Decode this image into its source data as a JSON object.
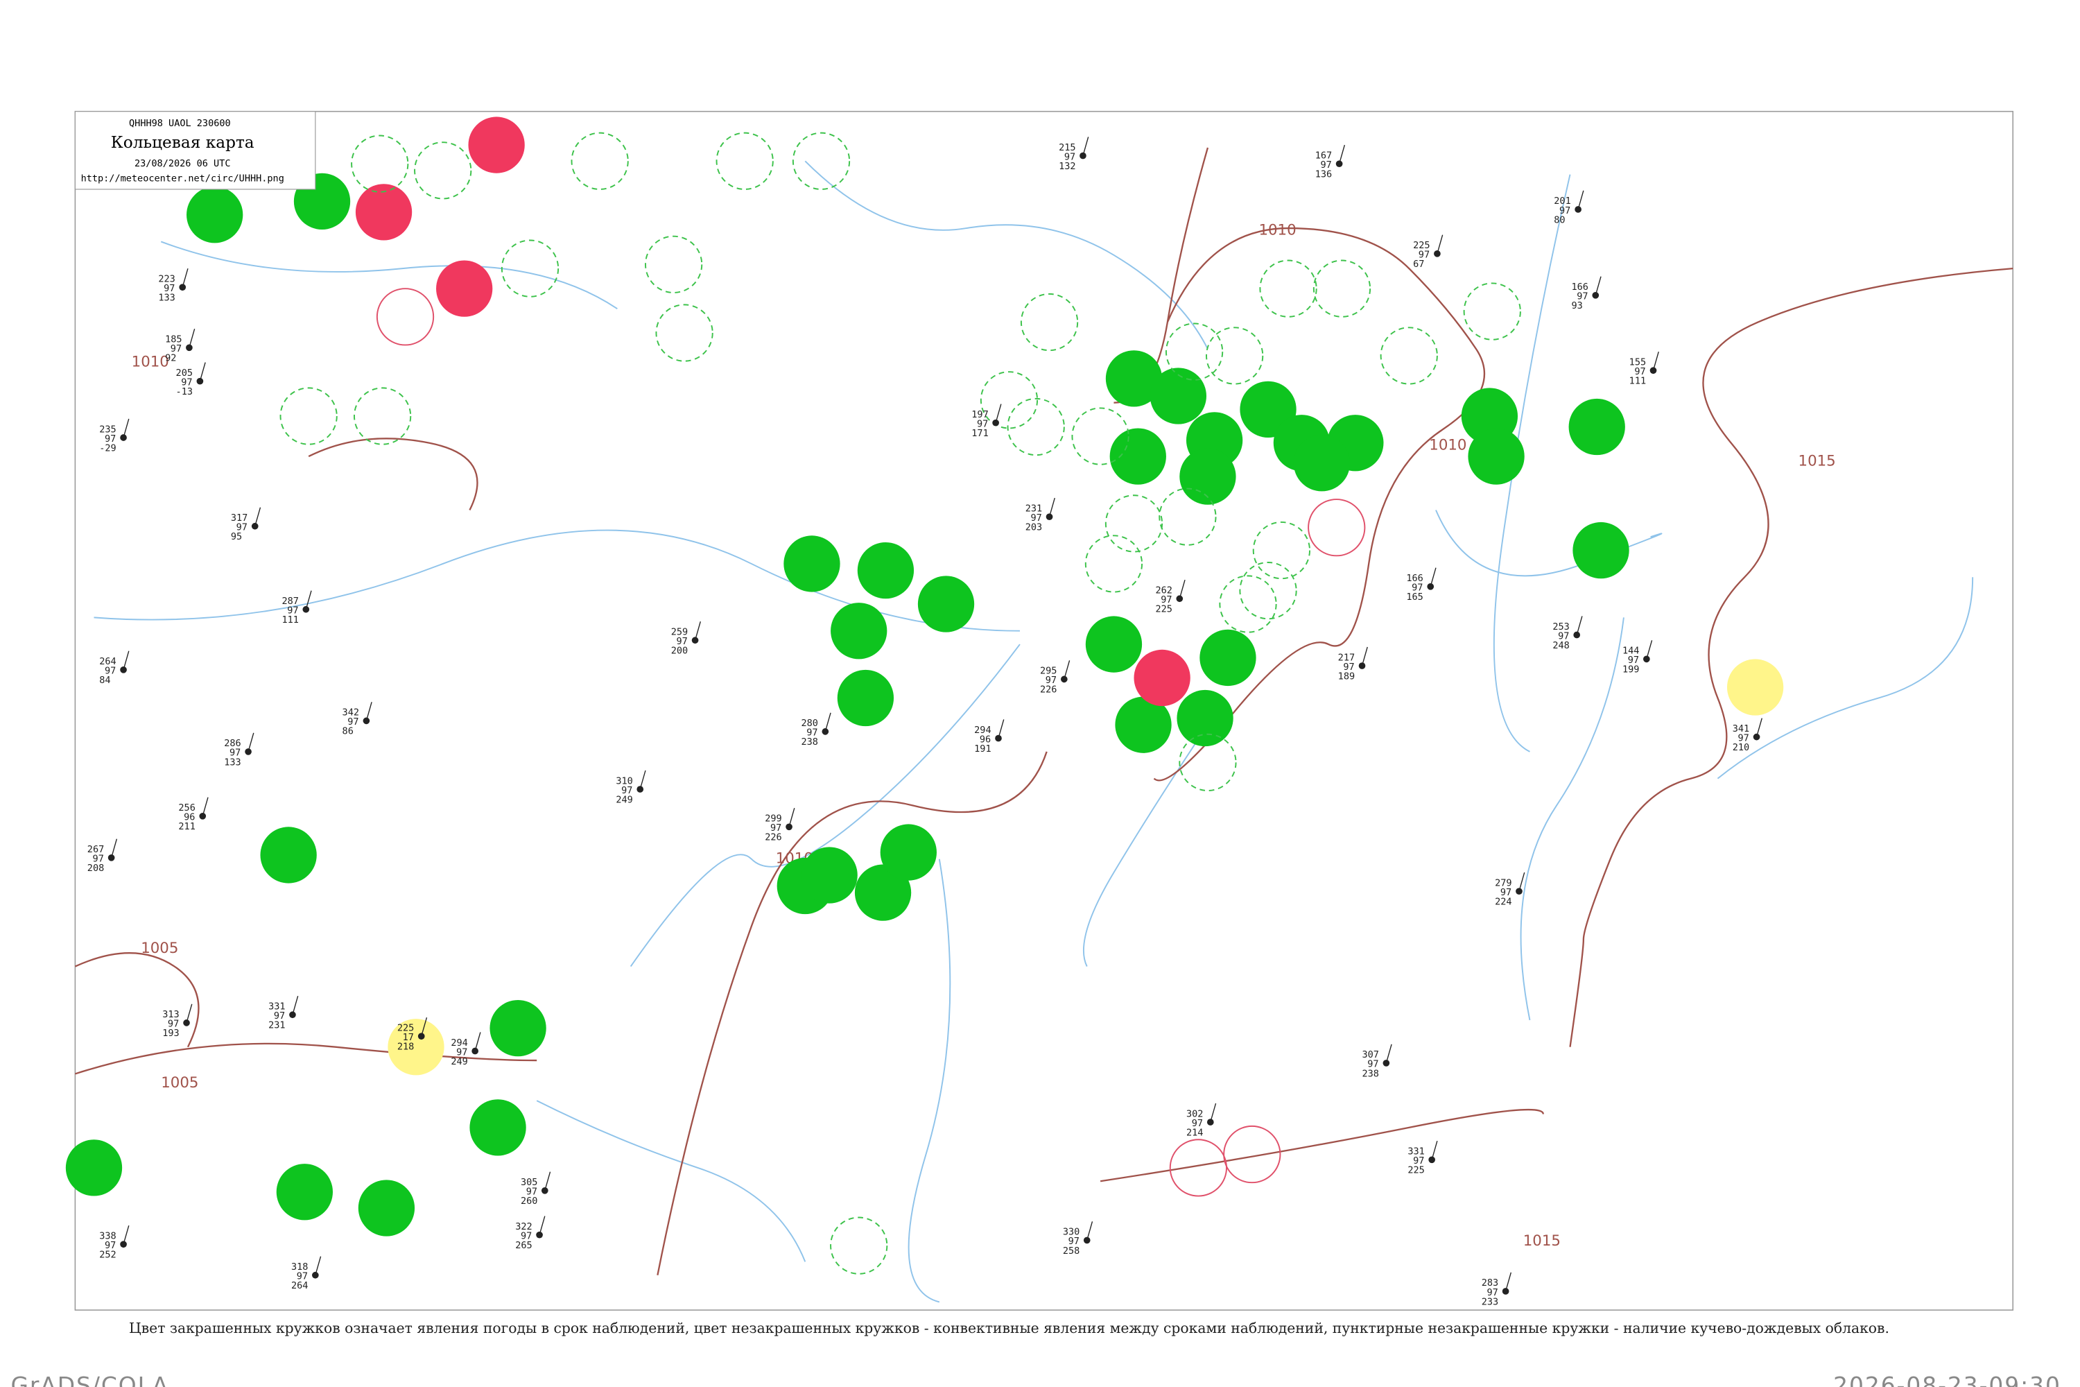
{
  "header": {
    "code": "QHHH98  UAOL  230600",
    "title": "Кольцевая карта",
    "date": "23/08/2026 06 UTC",
    "url": "http://meteocenter.net/circ/UHHH.png"
  },
  "caption": "Цвет закрашенных кружков означает явления погоды в срок наблюдений, цвет незакрашенных кружков - конвективные явления между сроками наблюдений, пунктирные незакрашенные кружки - наличие кучево-дождевых облаков.",
  "footer": {
    "left": "GrADS/COLA",
    "right": "2026-08-23-09:30"
  },
  "isobars": [
    "1010",
    "1010",
    "1010",
    "1010",
    "1005",
    "1005",
    "1015",
    "1015"
  ],
  "stations": [
    {
      "top": "223",
      "mid": "97",
      "bottom": "133"
    },
    {
      "top": "185",
      "mid": "97",
      "bottom": "92"
    },
    {
      "top": "205",
      "mid": "97",
      "bottom": "-13"
    },
    {
      "top": "235",
      "mid": "97",
      "bottom": "-29"
    },
    {
      "top": "317",
      "mid": "97",
      "bottom": "95"
    },
    {
      "top": "287",
      "mid": "97",
      "bottom": "111"
    },
    {
      "top": "264",
      "mid": "97",
      "bottom": "84"
    },
    {
      "top": "342",
      "mid": "97",
      "bottom": "86"
    },
    {
      "top": "286",
      "mid": "97",
      "bottom": "133"
    },
    {
      "top": "256",
      "mid": "96",
      "bottom": "211"
    },
    {
      "top": "267",
      "mid": "97",
      "bottom": "208"
    },
    {
      "top": "313",
      "mid": "97",
      "bottom": "193"
    },
    {
      "top": "331",
      "mid": "97",
      "bottom": "231"
    },
    {
      "top": "225",
      "mid": "17",
      "bottom": "218"
    },
    {
      "top": "294",
      "mid": "97",
      "bottom": "249"
    },
    {
      "top": "305",
      "mid": "97",
      "bottom": "260"
    },
    {
      "top": "322",
      "mid": "97",
      "bottom": "265"
    },
    {
      "top": "318",
      "mid": "97",
      "bottom": "264"
    },
    {
      "top": "338",
      "mid": "97",
      "bottom": "252"
    },
    {
      "top": "259",
      "mid": "97",
      "bottom": "200"
    },
    {
      "top": "310",
      "mid": "97",
      "bottom": "249"
    },
    {
      "top": "299",
      "mid": "97",
      "bottom": "226"
    },
    {
      "top": "280",
      "mid": "97",
      "bottom": "238"
    },
    {
      "top": "294",
      "mid": "96",
      "bottom": "191"
    },
    {
      "top": "295",
      "mid": "97",
      "bottom": "226"
    },
    {
      "top": "262",
      "mid": "97",
      "bottom": "225"
    },
    {
      "top": "217",
      "mid": "97",
      "bottom": "189"
    },
    {
      "top": "166",
      "mid": "97",
      "bottom": "165"
    },
    {
      "top": "253",
      "mid": "97",
      "bottom": "248"
    },
    {
      "top": "279",
      "mid": "97",
      "bottom": "224"
    },
    {
      "top": "307",
      "mid": "97",
      "bottom": "238"
    },
    {
      "top": "331",
      "mid": "97",
      "bottom": "225"
    },
    {
      "top": "302",
      "mid": "97",
      "bottom": "214"
    },
    {
      "top": "330",
      "mid": "97",
      "bottom": "258"
    },
    {
      "top": "283",
      "mid": "97",
      "bottom": "233"
    },
    {
      "top": "197",
      "mid": "97",
      "bottom": "171"
    },
    {
      "top": "231",
      "mid": "97",
      "bottom": "203"
    },
    {
      "top": "215",
      "mid": "97",
      "bottom": "132"
    },
    {
      "top": "167",
      "mid": "97",
      "bottom": "136"
    },
    {
      "top": "225",
      "mid": "97",
      "bottom": "67"
    },
    {
      "top": "201",
      "mid": "97",
      "bottom": "80"
    },
    {
      "top": "166",
      "mid": "97",
      "bottom": "93"
    },
    {
      "top": "155",
      "mid": "97",
      "bottom": "111"
    },
    {
      "top": "144",
      "mid": "97",
      "bottom": "199"
    },
    {
      "top": "341",
      "mid": "97",
      "bottom": "210"
    }
  ]
}
